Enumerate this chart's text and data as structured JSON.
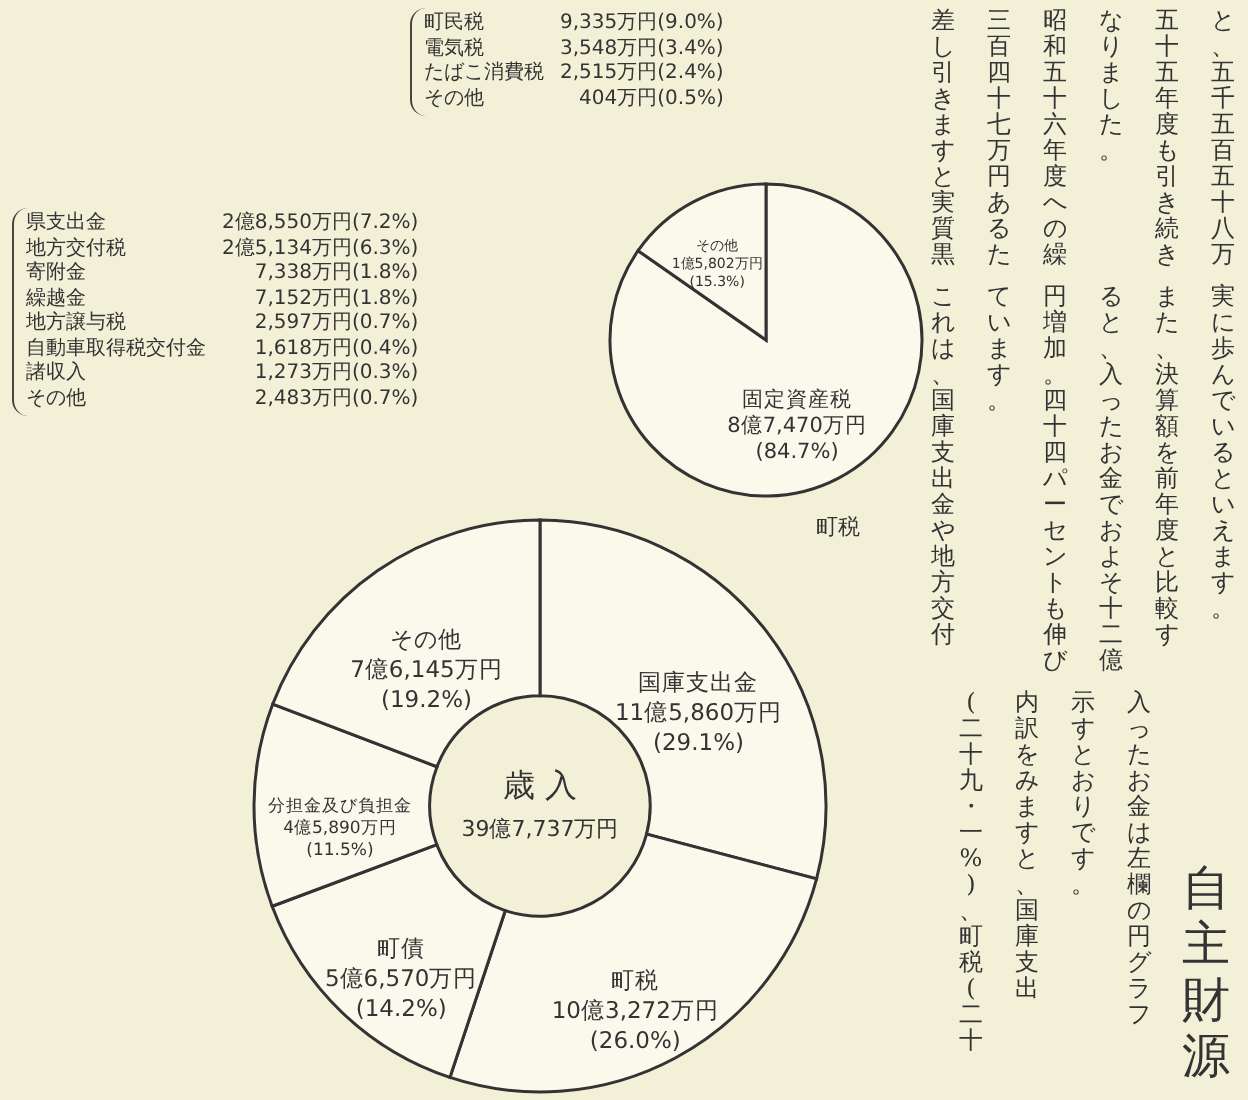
{
  "chart_data": [
    {
      "type": "donut",
      "title": "歳 入",
      "subtitle": "39億7,737万円",
      "categories": [
        "国庫支出金",
        "町税",
        "町債",
        "分担金及び負担金",
        "その他"
      ],
      "values": [
        29.1,
        26.0,
        14.2,
        11.5,
        19.2
      ],
      "value_labels": [
        "11億5,860万円 (29.1%)",
        "10億3,272万円 (26.0%)",
        "5億6,570万円 (14.2%)",
        "4億5,890万円 (11.5%)",
        "7億6,145万円 (19.2%)"
      ],
      "colors": [
        "#fbf9ec",
        "#fbf9ec",
        "#fbf9ec",
        "#fbf9ec",
        "#fbf9ec"
      ],
      "annotations": [
        "県支出金 2億8,550万円(7.2%)\n地方交付税 2億5,134万円(6.3%)\n寄附金 7,338万円(1.8%)\n繰越金 7,152万円(1.8%)\n地方譲与税 2,597万円(0.7%)\n自動車取得税交付金 1,618万円(0.4%)\n諸収入 1,273万円(0.3%)\nその他 2,483万円(0.7%)"
      ]
    },
    {
      "type": "pie",
      "categories": [
        "固定資産税",
        "その他"
      ],
      "values": [
        84.7,
        15.3
      ],
      "value_labels": [
        "8億7,470万円 (84.7%)",
        "1億5,802万円 (15.3%)"
      ],
      "colors": [
        "#fbf9ec",
        "#fbf9ec"
      ],
      "annotations": [
        "町民税 9,335万円(9.0%)\n電気税 3,548万円(3.4%)\nたばこ消費税 2,515万円(2.4%)\nその他 404万円(0.5%)",
        "町税"
      ]
    },
    {
      "type": "other",
      "title": "自主財源",
      "annotations": [
        "と、五千五百五十八万",
        "五十五年度も引き続き",
        "なりました。",
        "昭和五十六年度への繰",
        "三百四十七万円あるた",
        "差し引きますと実質黒",
        "実に歩んでいるといえます。",
        "また、決算額を前年度と比較す",
        "ると、入ったお金でおよそ十二億",
        "円増加。四十四パーセントも伸び",
        "ています。",
        "これは、国庫支出金や地方交付",
        "入ったお金は左欄の円グラフ",
        "示すとおりです。",
        "内訳をみますと、国庫支出",
        "(二十九・一%)、町税(二十"
      ]
    }
  ]
}
